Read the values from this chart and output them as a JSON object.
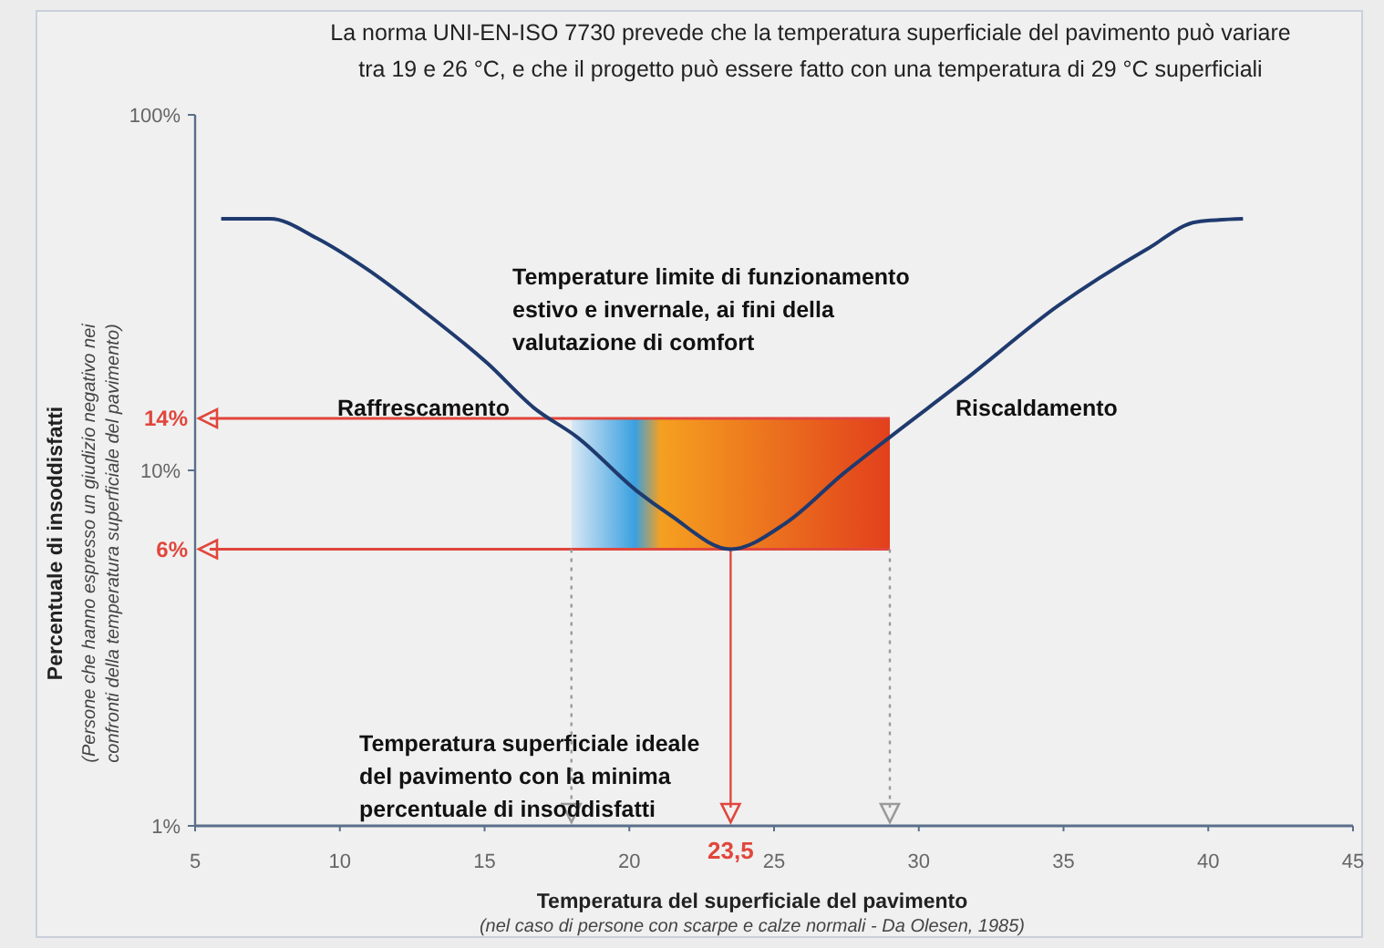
{
  "chart_data": {
    "type": "line",
    "title": "La norma UNI-EN-ISO 7730 prevede che la temperatura superficiale del pavimento può variare\ntra 19 e 26 °C, e che il progetto può essere fatto con una temperatura di 29 °C superficiali",
    "xlabel": "Temperatura del superficiale del pavimento",
    "ylabel": "Percentuale di insoddisfatti",
    "x": [
      5.9,
      7.6,
      9.2,
      10.9,
      12.9,
      15.1,
      16.7,
      18.2,
      20.3,
      21.4,
      23.5,
      25.4,
      27.4,
      29,
      31.6,
      34.8,
      37.9,
      39.6,
      41.2
    ],
    "series": [
      {
        "color": "#1f3a6e",
        "values": [
          51,
          51,
          45,
          37,
          28,
          20,
          15,
          12.4,
          8.7,
          7.5,
          6,
          7.1,
          9.8,
          12.4,
          18,
          29,
          42,
          50,
          51
        ]
      }
    ],
    "log": "y",
    "xlim": [
      5,
      45
    ],
    "xticks": [
      5,
      10,
      15,
      20,
      25,
      30,
      35,
      40,
      45
    ],
    "ylim": [
      1,
      100
    ],
    "yticks": [
      {
        "value": 1,
        "label": "1%"
      },
      {
        "value": 10,
        "label": "10%"
      },
      {
        "value": 100,
        "label": "100%"
      }
    ],
    "marker": "none",
    "line_style": "solid",
    "ref_lines": [
      {
        "axis": "y",
        "value": 14,
        "label": "14%",
        "color": "#e0463c"
      },
      {
        "axis": "y",
        "value": 6,
        "label": "6%",
        "color": "#e0463c"
      },
      {
        "axis": "x",
        "value": 18,
        "color": "#9a9a9a",
        "line_style": "dotted"
      },
      {
        "axis": "x",
        "value": 29,
        "color": "#9a9a9a",
        "line_style": "dotted"
      },
      {
        "axis": "x",
        "value": 23.5,
        "label": "23,5",
        "color": "#e0463c"
      }
    ],
    "bands": [
      {
        "axis": "x",
        "from": 18,
        "to": 29,
        "color": "#e2401c"
      }
    ],
    "annotations": [
      "Raffrescamento",
      "Riscaldamento",
      "Temperature limite di funzionamento\nestivo e invernale, ai fini della\nvalutazione di comfort",
      "Temperatura superficiale ideale\ndel pavimento con la minima\npercentuale di insoddisfatti",
      "(Persone che hanno espresso un giudizio negativo nei\nconfronti della temperatura superficiale del pavimento)",
      "(nel caso di persone con scarpe e calze normali - Da Olesen, 1985)"
    ]
  }
}
